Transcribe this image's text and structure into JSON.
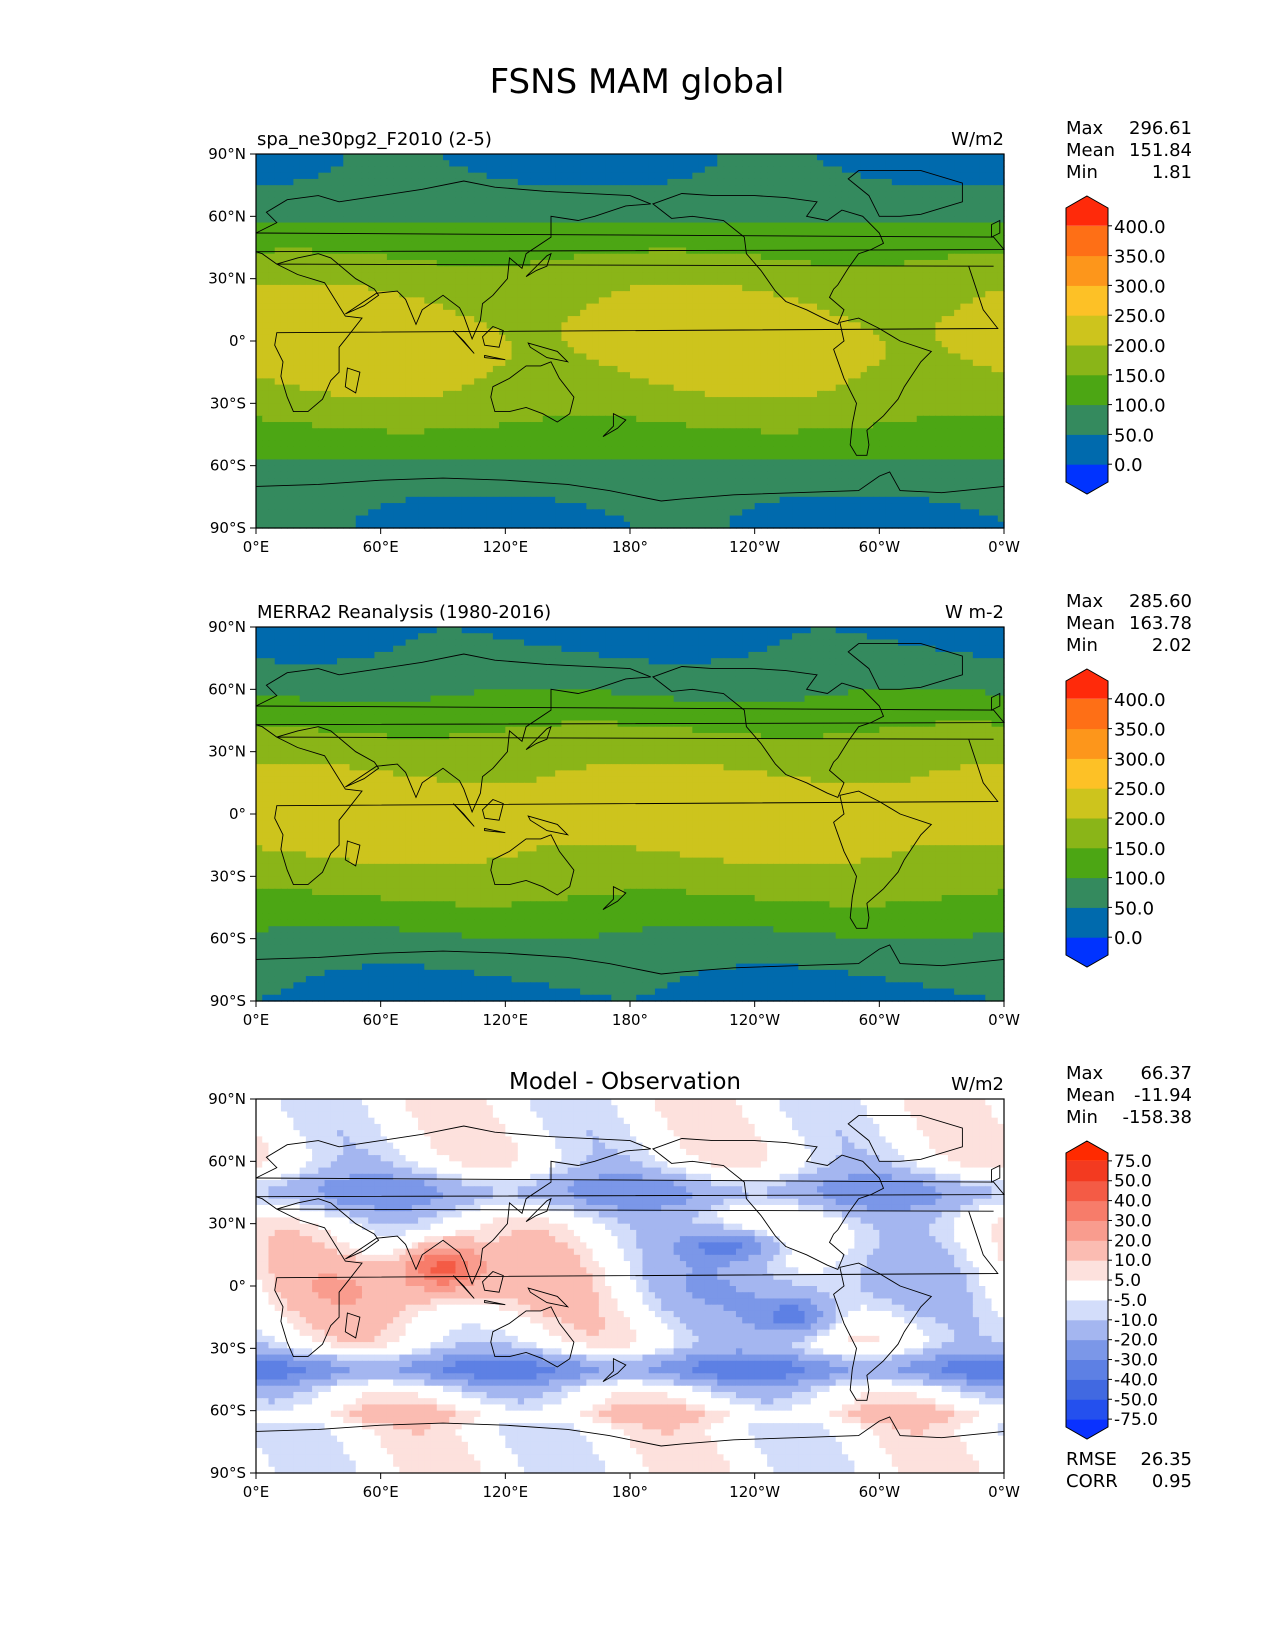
{
  "figure": {
    "title": "FSNS MAM global"
  },
  "chart_data": [
    {
      "type": "heatmap",
      "left_title": "spa_ne30pg2_F2010 (2-5)",
      "units": "W/m2",
      "stats": [
        {
          "label": "Max",
          "value": "296.61"
        },
        {
          "label": "Mean",
          "value": "151.84"
        },
        {
          "label": "Min",
          "value": "1.81"
        }
      ],
      "xticks": [
        "0°E",
        "60°E",
        "120°E",
        "180°",
        "120°W",
        "60°W",
        "0°W"
      ],
      "yticks": [
        "90°N",
        "60°N",
        "30°N",
        "0°",
        "30°S",
        "60°S",
        "90°S"
      ],
      "xlim": [
        0,
        360
      ],
      "ylim": [
        -90,
        90
      ],
      "colorbar": {
        "levels": [
          "0.0",
          "50.0",
          "100.0",
          "150.0",
          "200.0",
          "250.0",
          "300.0",
          "350.0",
          "400.0"
        ],
        "colors": [
          "#0033ff",
          "#006aad",
          "#348a5e",
          "#4ca614",
          "#8ab518",
          "#cdc41d",
          "#fdc126",
          "#fd961b",
          "#fe6f16",
          "#ff2a0a"
        ],
        "extend": "both"
      }
    },
    {
      "type": "heatmap",
      "left_title": "MERRA2 Reanalysis (1980-2016)",
      "units": "W m-2",
      "stats": [
        {
          "label": "Max",
          "value": "285.60"
        },
        {
          "label": "Mean",
          "value": "163.78"
        },
        {
          "label": "Min",
          "value": "2.02"
        }
      ],
      "xticks": [
        "0°E",
        "60°E",
        "120°E",
        "180°",
        "120°W",
        "60°W",
        "0°W"
      ],
      "yticks": [
        "90°N",
        "60°N",
        "30°N",
        "0°",
        "30°S",
        "60°S",
        "90°S"
      ],
      "xlim": [
        0,
        360
      ],
      "ylim": [
        -90,
        90
      ],
      "colorbar": {
        "levels": [
          "0.0",
          "50.0",
          "100.0",
          "150.0",
          "200.0",
          "250.0",
          "300.0",
          "350.0",
          "400.0"
        ],
        "colors": [
          "#0033ff",
          "#006aad",
          "#348a5e",
          "#4ca614",
          "#8ab518",
          "#cdc41d",
          "#fdc126",
          "#fd961b",
          "#fe6f16",
          "#ff2a0a"
        ],
        "extend": "both"
      }
    },
    {
      "type": "heatmap",
      "center_title": "Model - Observation",
      "units": "W/m2",
      "stats": [
        {
          "label": "Max",
          "value": "66.37"
        },
        {
          "label": "Mean",
          "value": "-11.94"
        },
        {
          "label": "Min",
          "value": "-158.38"
        }
      ],
      "bottom_stats": [
        {
          "label": "RMSE",
          "value": "26.35"
        },
        {
          "label": "CORR",
          "value": "0.95"
        }
      ],
      "xticks": [
        "0°E",
        "60°E",
        "120°E",
        "180°",
        "120°W",
        "60°W",
        "0°W"
      ],
      "yticks": [
        "90°N",
        "60°N",
        "30°N",
        "0°",
        "30°S",
        "60°S",
        "90°S"
      ],
      "xlim": [
        0,
        360
      ],
      "ylim": [
        -90,
        90
      ],
      "colorbar": {
        "levels": [
          "-75.0",
          "-50.0",
          "-40.0",
          "-30.0",
          "-20.0",
          "-10.0",
          "-5.0",
          "5.0",
          "10.0",
          "20.0",
          "30.0",
          "40.0",
          "50.0",
          "75.0"
        ],
        "colors": [
          "#0a32ff",
          "#2450ee",
          "#4169e1",
          "#5d80e4",
          "#7b97e8",
          "#a4b6f0",
          "#d3ddfa",
          "#ffffff",
          "#fde1dd",
          "#fbbcb2",
          "#f99c8e",
          "#f77c6a",
          "#f45b45",
          "#f33a20",
          "#ff2a00"
        ],
        "extend": "both"
      }
    }
  ]
}
